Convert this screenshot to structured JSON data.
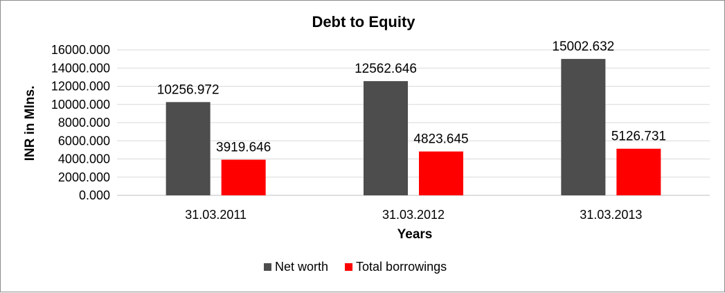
{
  "chart_data": {
    "type": "bar",
    "title": "Debt to Equity",
    "xlabel": "Years",
    "ylabel": "INR in Mlns.",
    "categories": [
      "31.03.2011",
      "31.03.2012",
      "31.03.2013"
    ],
    "series": [
      {
        "name": "Net worth",
        "color": "#4d4d4d",
        "values": [
          10256.972,
          12562.646,
          15002.632
        ],
        "labels": [
          "10256.972",
          "12562.646",
          "15002.632"
        ]
      },
      {
        "name": "Total borrowings",
        "color": "#ff0000",
        "values": [
          3919.646,
          4823.645,
          5126.731
        ],
        "labels": [
          "3919.646",
          "4823.645",
          "5126.731"
        ]
      }
    ],
    "ylim": [
      0,
      16000
    ],
    "yticks": [
      0,
      2000,
      4000,
      6000,
      8000,
      10000,
      12000,
      14000,
      16000
    ],
    "ytick_labels": [
      "0.000",
      "2000.000",
      "4000.000",
      "6000.000",
      "8000.000",
      "10000.000",
      "12000.000",
      "14000.000",
      "16000.000"
    ],
    "grid": true,
    "legend_position": "bottom"
  }
}
